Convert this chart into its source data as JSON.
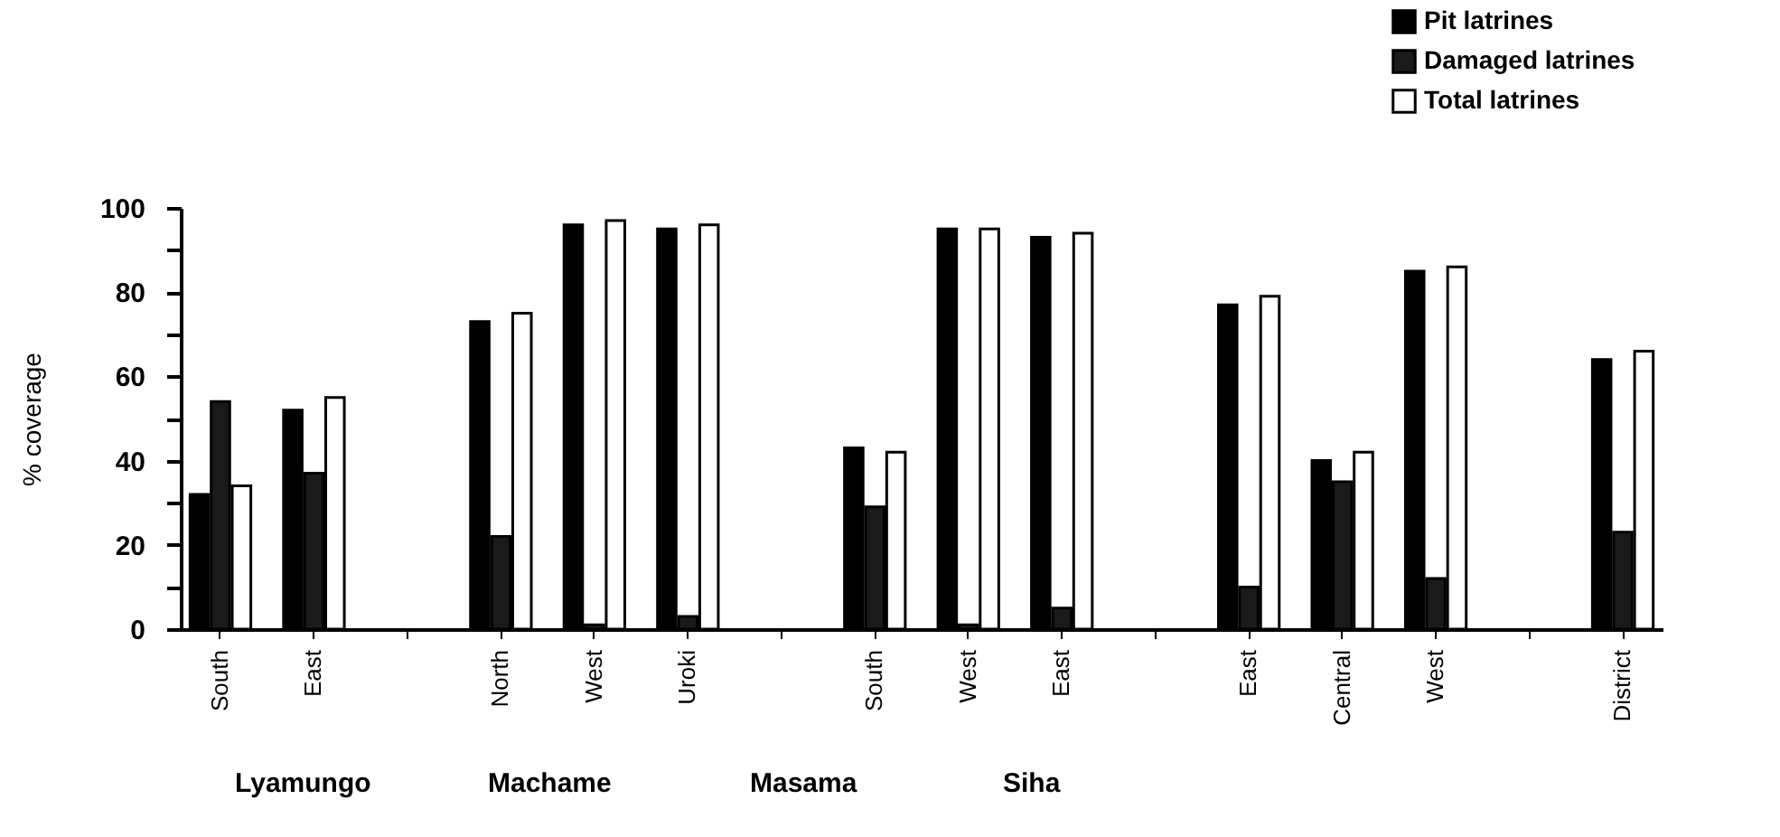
{
  "chart_data": {
    "type": "bar",
    "ylabel": "% coverage",
    "categories": [
      "South",
      "East",
      null,
      "North",
      "West",
      "Uroki",
      null,
      "South",
      "West",
      "East",
      null,
      "East",
      "Central",
      "West",
      null,
      "District"
    ],
    "series": [
      {
        "name": "Pit latrines",
        "color": "#000000",
        "values": [
          32,
          52,
          null,
          73,
          96,
          95,
          null,
          43,
          95,
          93,
          null,
          77,
          40,
          85,
          null,
          64
        ]
      },
      {
        "name": "Damaged latrines",
        "color": "#1a1a1a",
        "values": [
          54,
          37,
          null,
          22,
          1,
          3,
          null,
          29,
          1,
          5,
          null,
          10,
          35,
          12,
          null,
          23
        ]
      },
      {
        "name": "Total latrines",
        "color": "#ffffff",
        "values": [
          34,
          55,
          null,
          75,
          97,
          96,
          null,
          42,
          95,
          94,
          null,
          79,
          42,
          86,
          null,
          66
        ]
      }
    ],
    "ylim": [
      0,
      100
    ],
    "yticks": [
      0,
      {
        "value": 10,
        "label": null
      },
      20,
      {
        "value": 30,
        "label": null
      },
      40,
      {
        "value": 50,
        "label": null
      },
      60,
      {
        "value": 70,
        "label": null
      },
      80,
      {
        "value": 90,
        "label": null
      },
      100
    ],
    "annotations": [
      "Lyamungo",
      "Machame",
      "Masama",
      "Siha"
    ],
    "legend": "top right",
    "grid": false
  }
}
